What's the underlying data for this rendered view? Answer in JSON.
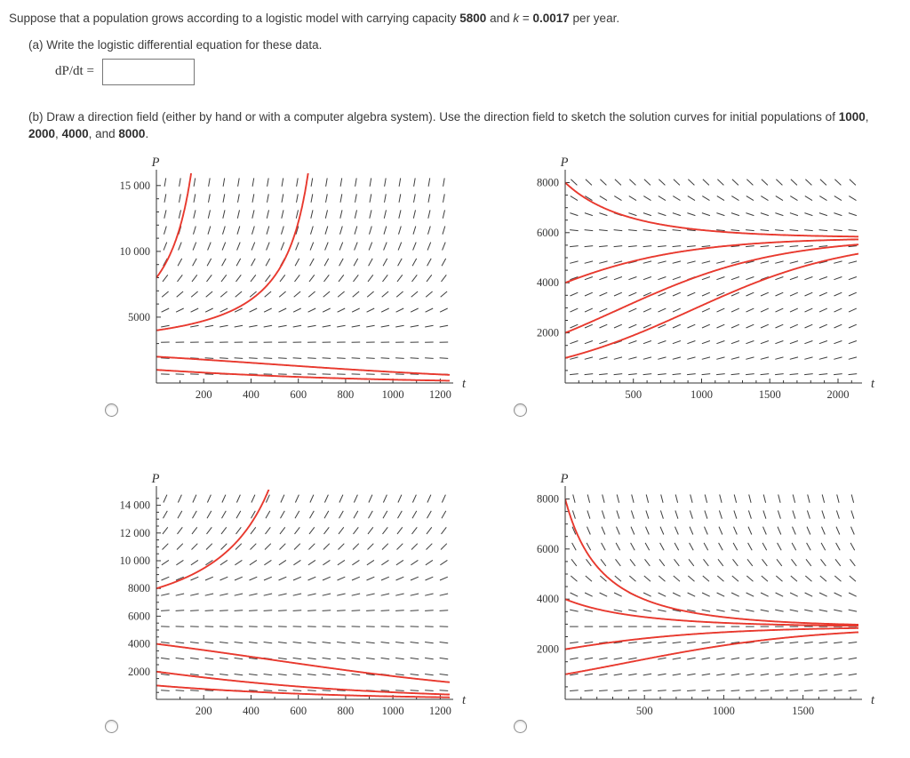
{
  "page": {
    "intro": [
      {
        "t": "Suppose that a population grows according to a logistic model with carrying capacity "
      },
      {
        "t": "5800",
        "b": true
      },
      {
        "t": " and "
      },
      {
        "t": "k",
        "i": true
      },
      {
        "t": " = "
      },
      {
        "t": "0.0017",
        "b": true
      },
      {
        "t": " per year."
      }
    ],
    "part_a": {
      "label": [
        {
          "t": "(a) Write the logistic differential equation for these data."
        }
      ],
      "eq_label": [
        {
          "t": "dP/dt",
          "i": true
        },
        {
          "t": " ="
        }
      ],
      "input_value": ""
    },
    "part_b": [
      {
        "t": "(b) Draw a direction field (either by hand or with a computer algebra system). Use the direction field to sketch the solution curves for initial populations of "
      },
      {
        "t": "1000",
        "b": true
      },
      {
        "t": ", "
      },
      {
        "t": "2000",
        "b": true
      },
      {
        "t": ", "
      },
      {
        "t": "4000",
        "b": true
      },
      {
        "t": ", and "
      },
      {
        "t": "8000",
        "b": true
      },
      {
        "t": "."
      }
    ],
    "options": [
      {
        "id": "A",
        "selected": false
      },
      {
        "id": "B",
        "selected": false
      },
      {
        "id": "C",
        "selected": false
      },
      {
        "id": "D",
        "selected": false
      }
    ]
  },
  "chart_style": {
    "curve_color": "#e8392e",
    "field_color": "#3d3d3d",
    "axis_color": "#333333",
    "label_color": "#333333"
  },
  "chart_data": [
    {
      "id": "A",
      "position": "top-left",
      "type": "direction_field",
      "xlabel": "t",
      "ylabel": "P",
      "xlim": [
        0,
        1240
      ],
      "ylim": [
        0,
        15800
      ],
      "x_ticks": [
        200,
        400,
        600,
        800,
        1000,
        1200
      ],
      "x_minor": 100,
      "y_ticks": [
        5000,
        10000,
        15000
      ],
      "y_minor": 1000,
      "y_tick_labels": [
        "5000",
        "10 000",
        "15 000"
      ],
      "ode": "dP/dt = 0.0017 P (P/2900 - 1)",
      "field": {
        "k": 0.0017,
        "M": 2900,
        "stable": false
      },
      "initial_populations": [
        1000,
        2000,
        4000,
        8000
      ]
    },
    {
      "id": "B",
      "position": "top-right",
      "type": "direction_field",
      "xlabel": "t",
      "ylabel": "P",
      "xlim": [
        0,
        2150
      ],
      "ylim": [
        0,
        8300
      ],
      "x_ticks": [
        500,
        1000,
        1500,
        2000
      ],
      "x_minor": 100,
      "y_ticks": [
        2000,
        4000,
        6000,
        8000
      ],
      "y_minor": 500,
      "y_tick_labels": [
        "2000",
        "4000",
        "6000",
        "8000"
      ],
      "ode": "dP/dt = 0.0017 P (1 - P/5800)",
      "field": {
        "k": 0.0017,
        "M": 5800,
        "stable": true
      },
      "initial_populations": [
        1000,
        2000,
        4000,
        8000
      ]
    },
    {
      "id": "C",
      "position": "bottom-left",
      "type": "direction_field",
      "xlabel": "t",
      "ylabel": "P",
      "xlim": [
        0,
        1240
      ],
      "ylim": [
        0,
        15000
      ],
      "x_ticks": [
        200,
        400,
        600,
        800,
        1000,
        1200
      ],
      "x_minor": 100,
      "y_ticks": [
        2000,
        4000,
        6000,
        8000,
        10000,
        12000,
        14000
      ],
      "y_minor": 500,
      "y_tick_labels": [
        "2000",
        "4000",
        "6000",
        "8000",
        "10 000",
        "12 000",
        "14 000"
      ],
      "ode": "dP/dt = 0.0017 P (P/5800 - 1)",
      "field": {
        "k": 0.0017,
        "M": 5800,
        "stable": false
      },
      "initial_populations": [
        1000,
        2000,
        4000,
        8000
      ]
    },
    {
      "id": "D",
      "position": "bottom-right",
      "type": "direction_field",
      "xlabel": "t",
      "ylabel": "P",
      "xlim": [
        0,
        1850
      ],
      "ylim": [
        0,
        8300
      ],
      "x_ticks": [
        500,
        1000,
        1500
      ],
      "x_minor": 100,
      "y_ticks": [
        2000,
        4000,
        6000,
        8000
      ],
      "y_minor": 500,
      "y_tick_labels": [
        "2000",
        "4000",
        "6000",
        "8000"
      ],
      "ode": "dP/dt = 0.0017 P (1 - P/2900)",
      "field": {
        "k": 0.0017,
        "M": 2900,
        "stable": true
      },
      "initial_populations": [
        1000,
        2000,
        4000,
        8000
      ]
    }
  ]
}
